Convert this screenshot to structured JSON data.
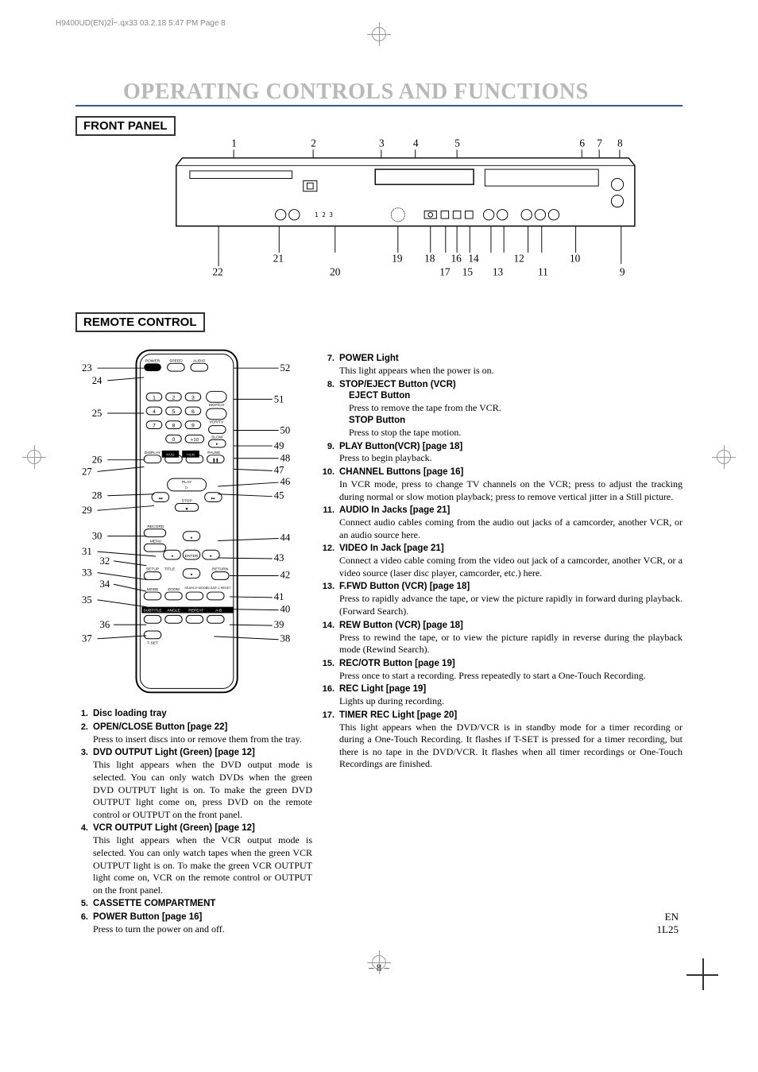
{
  "meta": {
    "header": "H9400UD(EN)2Î~.qx33  03.2.18 5:47 PM  Page 8"
  },
  "title": "OPERATING CONTROLS AND FUNCTIONS",
  "sections": {
    "front_panel": "FRONT PANEL",
    "remote_control": "REMOTE CONTROL"
  },
  "front_panel_numbers_top": [
    "1",
    "2",
    "3",
    "4",
    "5",
    "6",
    "7",
    "8"
  ],
  "front_panel_numbers_bottom_row1": [
    "21",
    "19",
    "18",
    "16",
    "14",
    "12",
    "10"
  ],
  "front_panel_numbers_bottom_row2": [
    "22",
    "20",
    "17",
    "15",
    "13",
    "11",
    "9"
  ],
  "remote_left_labels": [
    "23",
    "24",
    "25",
    "26",
    "27",
    "28",
    "29",
    "30",
    "31",
    "32",
    "33",
    "34",
    "35",
    "36",
    "37"
  ],
  "remote_right_labels": [
    "52",
    "51",
    "50",
    "49",
    "48",
    "47",
    "46",
    "45",
    "44",
    "43",
    "42",
    "41",
    "40",
    "39",
    "38"
  ],
  "remote_buttons": {
    "row1": [
      "POWER",
      "SPEED",
      "AUDIO"
    ],
    "numpad": [
      [
        "1",
        "2",
        "3"
      ],
      [
        "4",
        "5",
        "6"
      ],
      [
        "7",
        "8",
        "9"
      ],
      [
        "0",
        "+10"
      ]
    ],
    "side_labels": [
      "SKIP/CH",
      "VCR/TV",
      "SLOW"
    ],
    "row_display": [
      "DISPLAY",
      "DVD",
      "VCR",
      "PAUSE"
    ],
    "play": "PLAY",
    "stop": "STOP",
    "record": "RECORD",
    "menu": "MENU",
    "enter": "ENTER",
    "setup": "SETUP",
    "title": "TITLE",
    "return": "RETURN",
    "mode": "MODE",
    "zoom": "ZOOM",
    "search_mode": "SEARCH MODE",
    "clear_creset": "CLEAR C.RESET",
    "subtitle": "SUBTITLE",
    "angle": "ANGLE",
    "repeat": "REPEAT",
    "ab": "A-B",
    "tset": "T-SET"
  },
  "panel_display": "1 2 3",
  "left_items": [
    {
      "n": "1.",
      "t": "Disc loading tray"
    },
    {
      "n": "2.",
      "t": "OPEN/CLOSE Button [page 22]",
      "d": "Press to insert discs into or remove them from the tray."
    },
    {
      "n": "3.",
      "t": "DVD OUTPUT Light (Green) [page 12]",
      "d": "This light appears when the DVD output mode is selected. You can only watch DVDs when the green DVD OUTPUT light is on. To make the green DVD OUTPUT light come on, press DVD on the remote control or OUTPUT on the front panel."
    },
    {
      "n": "4.",
      "t": "VCR OUTPUT Light (Green) [page 12]",
      "d": "This light appears when the VCR output mode is selected. You can only watch tapes when the green VCR OUTPUT light is on. To make the green VCR OUTPUT light come on, VCR on the remote control or OUTPUT on the front panel."
    },
    {
      "n": "5.",
      "t": "CASSETTE COMPARTMENT"
    },
    {
      "n": "6.",
      "t": "POWER Button [page 16]",
      "d": "Press to turn the power on and off."
    }
  ],
  "right_items": [
    {
      "n": "7.",
      "t": "POWER Light",
      "d": "This light appears when the power is on."
    },
    {
      "n": "8.",
      "t": "STOP/EJECT Button (VCR)",
      "subs": [
        {
          "st": "EJECT Button",
          "sd": "Press to remove the tape from the VCR."
        },
        {
          "st": "STOP Button",
          "sd": "Press to stop the tape motion."
        }
      ]
    },
    {
      "n": "9.",
      "t": "PLAY Button(VCR) [page 18]",
      "d": "Press to begin playback."
    },
    {
      "n": "10.",
      "t": "CHANNEL Buttons [page 16]",
      "d": "In VCR mode, press to change TV channels on the VCR; press to adjust the tracking during normal or slow motion playback; press to remove vertical jitter in a Still picture."
    },
    {
      "n": "11.",
      "t": "AUDIO In Jacks [page 21]",
      "d": "Connect audio cables coming from the audio out jacks of a camcorder, another VCR, or an audio source here."
    },
    {
      "n": "12.",
      "t": "VIDEO In Jack [page 21]",
      "d": "Connect a video cable coming from the video out jack of a camcorder, another VCR, or a video source (laser disc player, camcorder, etc.) here."
    },
    {
      "n": "13.",
      "t": "F.FWD Button (VCR) [page 18]",
      "d": "Press to rapidly advance the tape, or view the picture rapidly in forward during playback. (Forward Search)."
    },
    {
      "n": "14.",
      "t": "REW Button (VCR) [page 18]",
      "d": "Press to rewind the tape, or to view the picture rapidly in reverse during the playback mode (Rewind Search)."
    },
    {
      "n": "15.",
      "t": "REC/OTR Button [page 19]",
      "d": "Press once to start a recording. Press repeatedly to start a One-Touch Recording."
    },
    {
      "n": "16.",
      "t": "REC Light [page 19]",
      "d": "Lights up during recording."
    },
    {
      "n": "17.",
      "t": "TIMER REC Light [page 20]",
      "d": "This light appears when the DVD/VCR is in standby mode for a timer recording or during a One-Touch Recording. It flashes if T-SET is pressed for a timer recording, but there is no tape in the DVD/VCR. It flashes when all timer recordings or One-Touch Recordings are finished."
    }
  ],
  "footer": {
    "page": "– 8 –",
    "right1": "EN",
    "right2": "1L25"
  },
  "colors": {
    "title_gray": "#b8b8b8",
    "rule_blue": "#325a8c",
    "text": "#000000"
  }
}
